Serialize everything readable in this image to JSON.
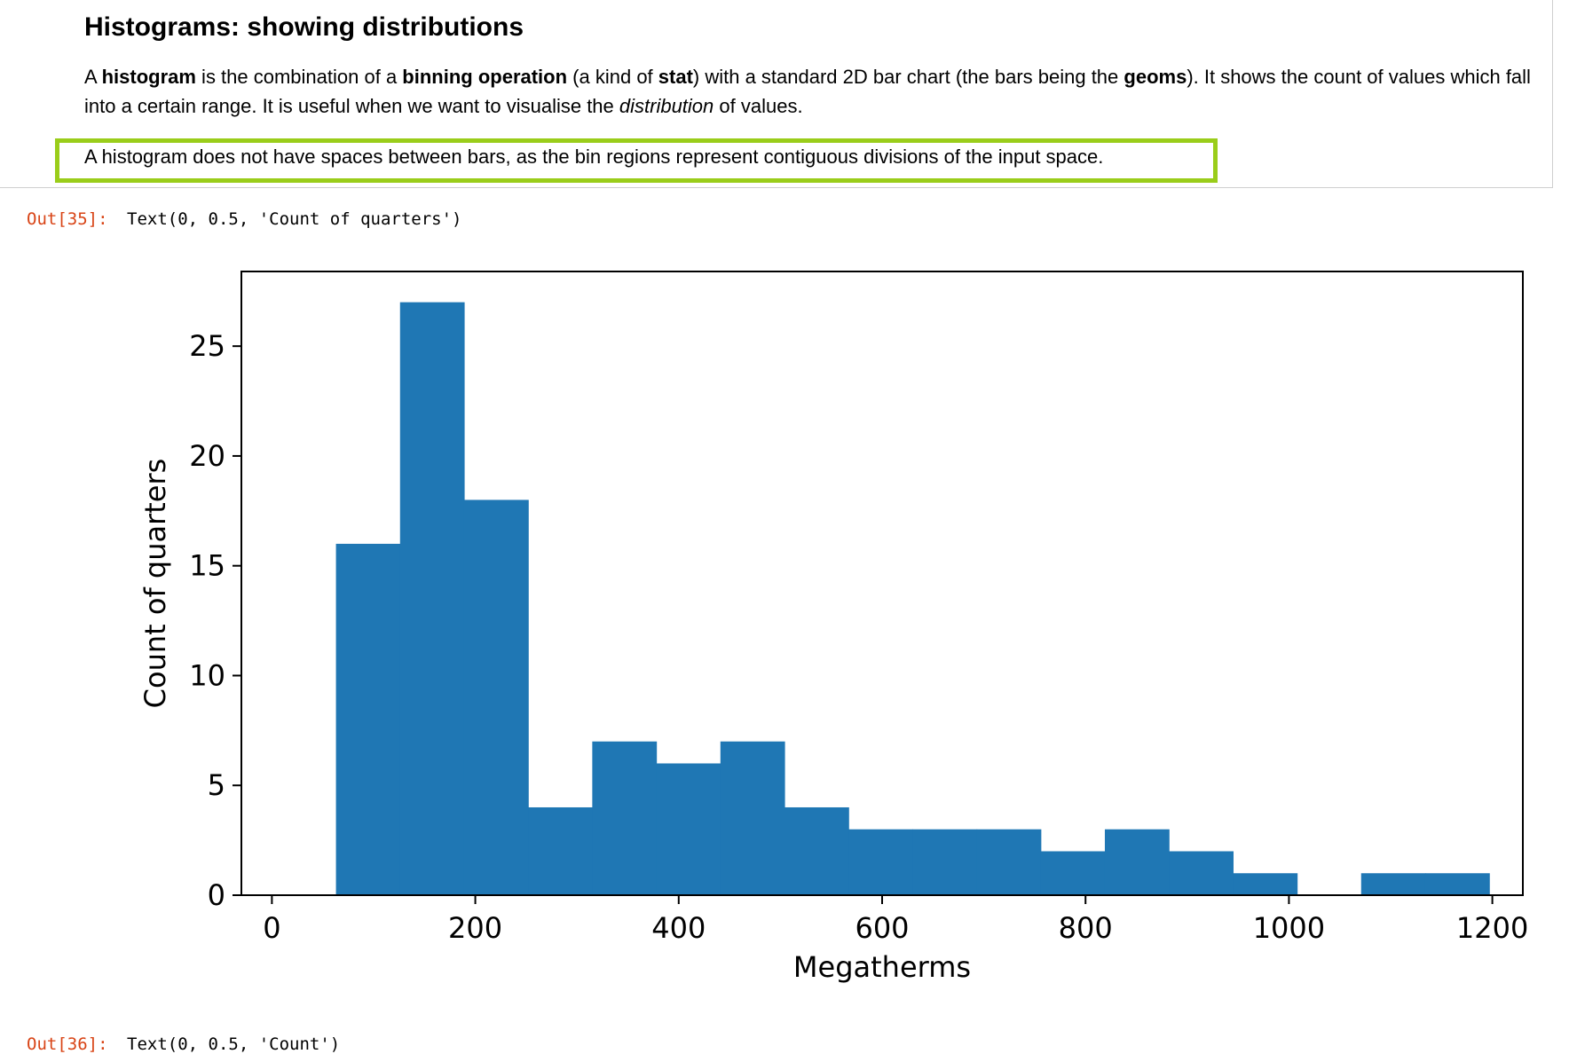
{
  "markdown": {
    "heading": "Histograms: showing distributions",
    "para_parts": {
      "p1": "A ",
      "b1": "histogram",
      "p2": " is the combination of a ",
      "b2": "binning operation",
      "p3": " (a kind of ",
      "b3": "stat",
      "p4": ") with a standard 2D bar chart (the bars being the ",
      "b4": "geoms",
      "p5": "). It shows the count of values which fall into a certain range. It is useful when we want to visualise the ",
      "i1": "distribution",
      "p6": " of values."
    },
    "note": "A histogram does not have spaces between bars, as the bin regions represent contiguous divisions of the input space.",
    "highlight_color": "#9acd1a"
  },
  "output": {
    "prompt": "Out[35]:",
    "text": "Text(0, 0.5, 'Count of quarters')",
    "next_prompt": "Out[36]:",
    "next_text": "Text(0, 0.5, 'Count')"
  },
  "chart_data": {
    "type": "bar",
    "title": "",
    "xlabel": "Megatherms",
    "ylabel": "Count of quarters",
    "xlim": [
      -30,
      1230
    ],
    "ylim": [
      0,
      28.4
    ],
    "xticks": [
      0,
      200,
      400,
      600,
      800,
      1000,
      1200
    ],
    "yticks": [
      0,
      5,
      10,
      15,
      20,
      25
    ],
    "bar_color": "#1f77b4",
    "bins": [
      {
        "x0": 63,
        "x1": 126,
        "count": 16
      },
      {
        "x0": 126,
        "x1": 189,
        "count": 27
      },
      {
        "x0": 189,
        "x1": 252,
        "count": 18
      },
      {
        "x0": 252,
        "x1": 315,
        "count": 4
      },
      {
        "x0": 315,
        "x1": 378,
        "count": 7
      },
      {
        "x0": 378,
        "x1": 441,
        "count": 6
      },
      {
        "x0": 441,
        "x1": 504,
        "count": 7
      },
      {
        "x0": 504,
        "x1": 567,
        "count": 4
      },
      {
        "x0": 567,
        "x1": 630,
        "count": 3
      },
      {
        "x0": 630,
        "x1": 693,
        "count": 3
      },
      {
        "x0": 693,
        "x1": 756,
        "count": 3
      },
      {
        "x0": 756,
        "x1": 819,
        "count": 2
      },
      {
        "x0": 819,
        "x1": 882,
        "count": 3
      },
      {
        "x0": 882,
        "x1": 945,
        "count": 2
      },
      {
        "x0": 945,
        "x1": 1008,
        "count": 1
      },
      {
        "x0": 1008,
        "x1": 1071,
        "count": 0
      },
      {
        "x0": 1071,
        "x1": 1134,
        "count": 1
      },
      {
        "x0": 1134,
        "x1": 1197,
        "count": 1
      }
    ]
  }
}
